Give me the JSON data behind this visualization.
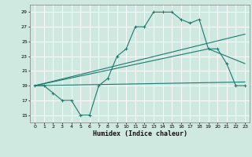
{
  "xlabel": "Humidex (Indice chaleur)",
  "xlim": [
    -0.5,
    23.5
  ],
  "ylim": [
    14,
    30
  ],
  "yticks": [
    15,
    17,
    19,
    21,
    23,
    25,
    27,
    29
  ],
  "xticks": [
    0,
    1,
    2,
    3,
    4,
    5,
    6,
    7,
    8,
    9,
    10,
    11,
    12,
    13,
    14,
    15,
    16,
    17,
    18,
    19,
    20,
    21,
    22,
    23
  ],
  "bg_color": "#cfe8e0",
  "grid_color": "#ffffff",
  "line_color": "#1a7a6e",
  "line1_x": [
    0,
    1,
    2,
    3,
    4,
    5,
    6,
    7,
    8,
    9,
    10,
    11,
    12,
    13,
    14,
    15,
    16,
    17,
    18,
    19,
    20,
    21,
    22,
    23
  ],
  "line1_y": [
    19,
    19,
    18,
    17,
    17,
    15,
    15,
    19,
    20,
    23,
    24,
    27,
    27,
    29,
    29,
    29,
    28,
    27.5,
    28,
    24,
    24,
    22,
    19,
    19
  ],
  "line2_x": [
    0,
    23
  ],
  "line2_y": [
    19,
    26
  ],
  "line3_x": [
    0,
    23
  ],
  "line3_y": [
    19,
    19.5
  ],
  "line4_x": [
    0,
    19,
    23
  ],
  "line4_y": [
    19,
    24,
    22
  ]
}
